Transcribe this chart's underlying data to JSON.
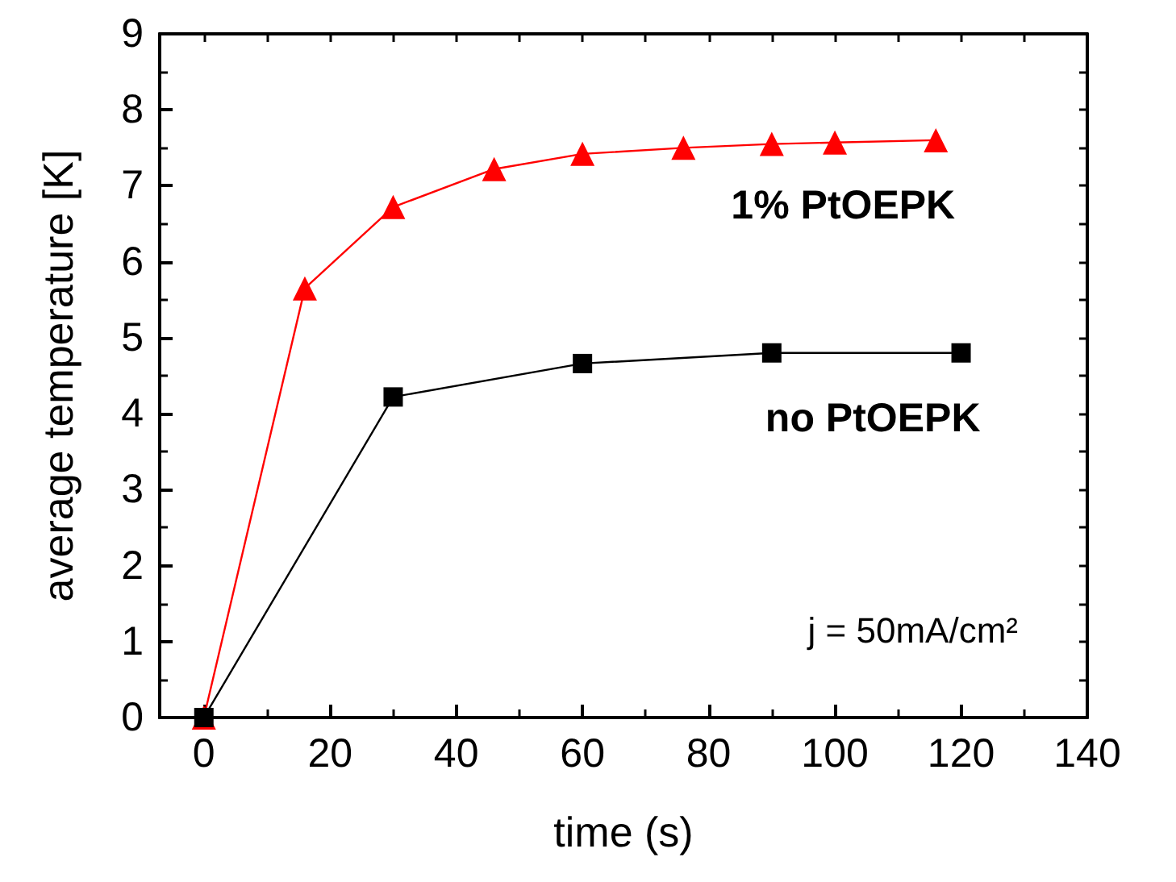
{
  "chart_data": {
    "type": "line",
    "xlabel": "time (s)",
    "ylabel": "average temperature [K]",
    "xlim": [
      -7,
      140
    ],
    "xticks": [
      0,
      20,
      40,
      60,
      80,
      100,
      120,
      140
    ],
    "ylim": [
      0,
      9
    ],
    "yticks": [
      0,
      1,
      2,
      3,
      4,
      5,
      6,
      7,
      8,
      9
    ],
    "grid": false,
    "legend": false,
    "series": [
      {
        "name": "1% PtOEPK",
        "color": "#ff0000",
        "marker": "triangle",
        "x": [
          0,
          16,
          30,
          46,
          60,
          76,
          90,
          100,
          116
        ],
        "values": [
          0,
          5.65,
          6.72,
          7.22,
          7.42,
          7.5,
          7.55,
          7.57,
          7.6
        ]
      },
      {
        "name": "no PtOEPK",
        "color": "#000000",
        "marker": "square",
        "x": [
          0,
          30,
          60,
          90,
          120
        ],
        "values": [
          0,
          4.22,
          4.66,
          4.8,
          4.8
        ]
      }
    ],
    "annotations": [
      "j = 50mA/cm²"
    ]
  }
}
